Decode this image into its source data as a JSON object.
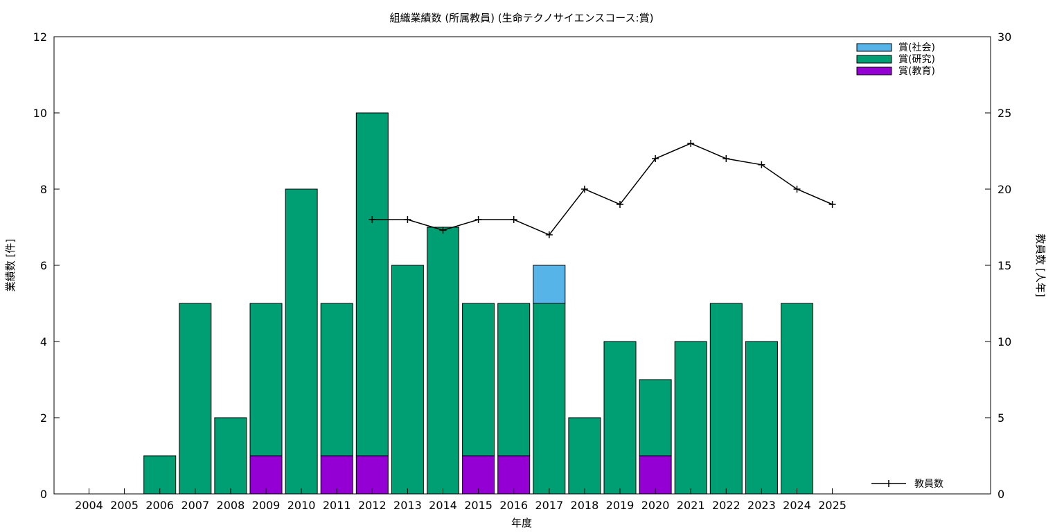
{
  "chart_data": {
    "type": "bar",
    "stacked": true,
    "title": "組織業績数 (所属教員) (生命テクノサイエンスコース:賞)",
    "xlabel": "年度",
    "ylabel": "業績数 [件]",
    "y2label": "教員数 [人年]",
    "ylim": [
      0,
      12
    ],
    "y2lim": [
      0,
      30
    ],
    "yticks": [
      "0",
      "2",
      "4",
      "6",
      "8",
      "10",
      "12"
    ],
    "y2ticks": [
      "0",
      "5",
      "10",
      "15",
      "20",
      "25",
      "30"
    ],
    "categories": [
      "2004",
      "2005",
      "2006",
      "2007",
      "2008",
      "2009",
      "2010",
      "2011",
      "2012",
      "2013",
      "2014",
      "2015",
      "2016",
      "2017",
      "2018",
      "2019",
      "2020",
      "2021",
      "2022",
      "2023",
      "2024",
      "2025"
    ],
    "series": [
      {
        "name": "賞(教育)",
        "color": "#9400d3",
        "values": [
          0,
          0,
          0,
          0,
          0,
          1,
          0,
          1,
          1,
          0,
          0,
          1,
          1,
          0,
          0,
          0,
          1,
          0,
          0,
          0,
          0,
          0
        ]
      },
      {
        "name": "賞(研究)",
        "color": "#009e73",
        "values": [
          0,
          0,
          1,
          5,
          2,
          4,
          8,
          4,
          9,
          6,
          7,
          4,
          4,
          5,
          2,
          4,
          2,
          4,
          5,
          4,
          5,
          0
        ]
      },
      {
        "name": "賞(社会)",
        "color": "#56b4e9",
        "values": [
          0,
          0,
          0,
          0,
          0,
          0,
          0,
          0,
          0,
          0,
          0,
          0,
          0,
          1,
          0,
          0,
          0,
          0,
          0,
          0,
          0,
          0
        ]
      }
    ],
    "line_series": {
      "name": "教員数",
      "axis": "y2",
      "color": "#000000",
      "x": [
        "2012",
        "2013",
        "2014",
        "2015",
        "2016",
        "2017",
        "2018",
        "2019",
        "2020",
        "2021",
        "2022",
        "2023",
        "2024",
        "2025"
      ],
      "values": [
        18,
        18,
        17.3,
        18,
        18,
        17,
        20,
        19,
        22,
        23,
        22,
        21.6,
        20,
        19
      ]
    },
    "legend_position": "top-right",
    "line_legend_position": "bottom-right",
    "grid": false
  }
}
